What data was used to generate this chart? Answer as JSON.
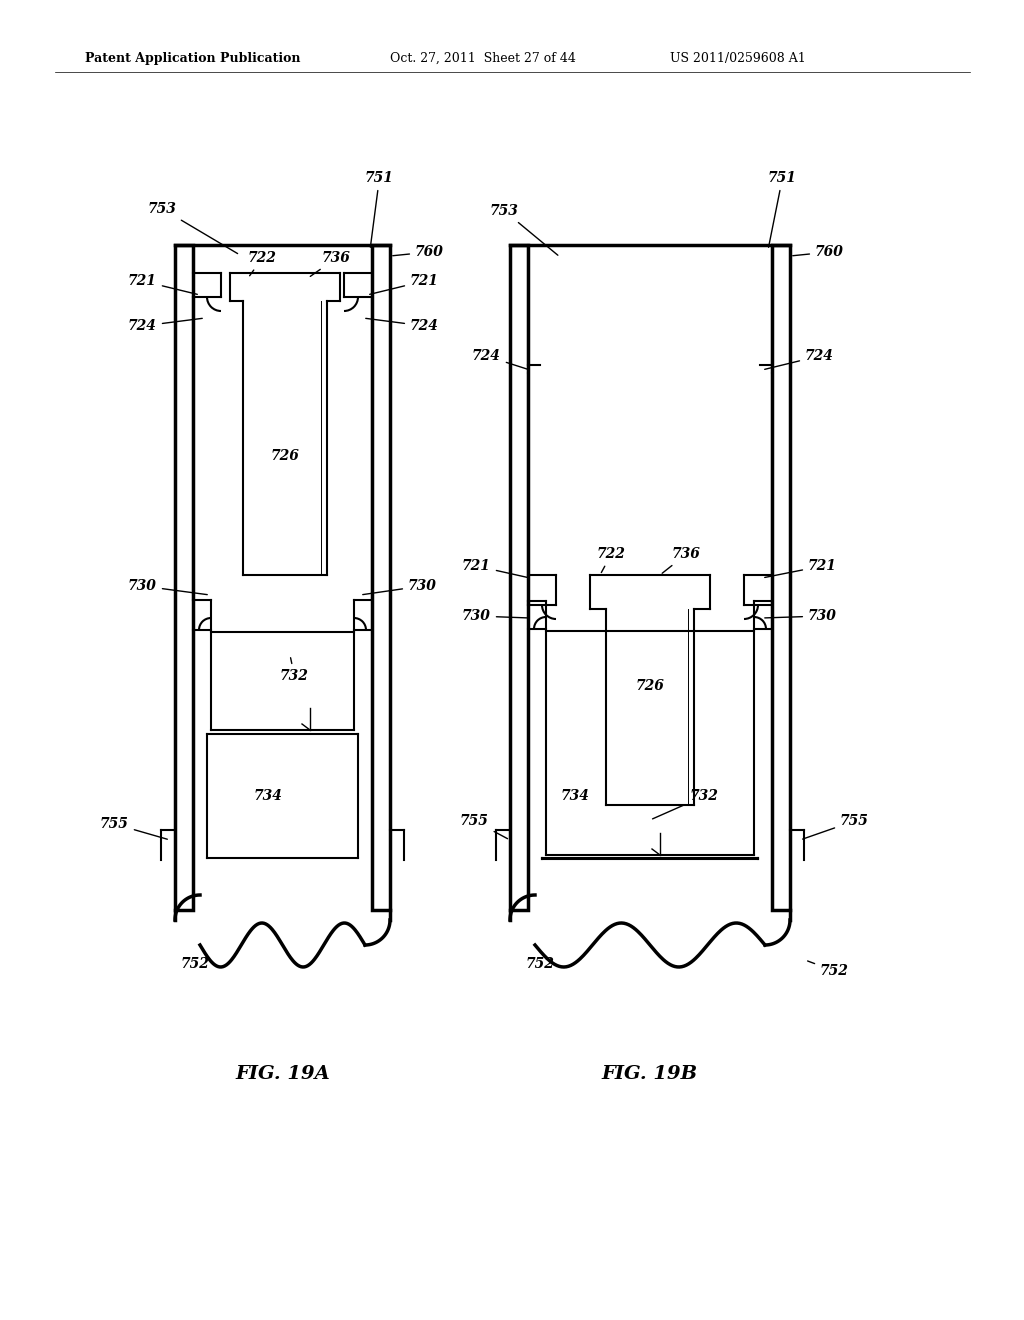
{
  "background_color": "#ffffff",
  "header_left": "Patent Application Publication",
  "header_mid": "Oct. 27, 2011  Sheet 27 of 44",
  "header_right": "US 2011/0259608 A1",
  "fig_label_A": "FIG. 19A",
  "fig_label_B": "FIG. 19B",
  "text_color": "#000000",
  "line_color": "#000000"
}
